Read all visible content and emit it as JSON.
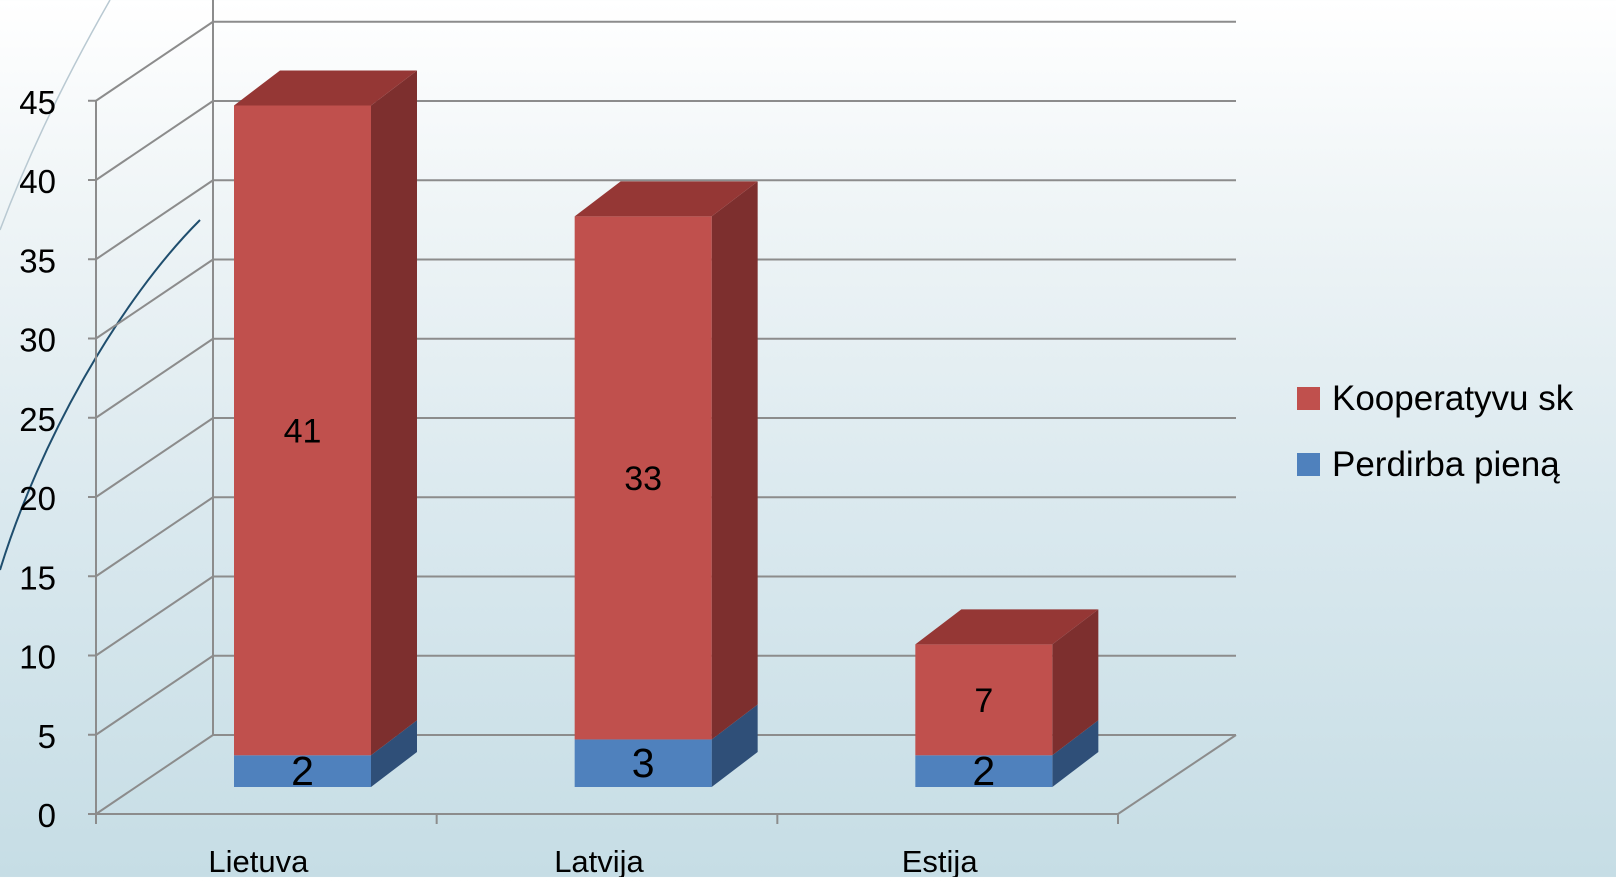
{
  "chart_data": {
    "type": "bar",
    "stacked": true,
    "three_d": true,
    "categories": [
      "Lietuva",
      "Latvija",
      "Estija"
    ],
    "series": [
      {
        "name": "Perdirba pieną",
        "values": [
          2,
          3,
          2
        ],
        "color": "#4f81bd",
        "side_color": "#2f4f78",
        "top_color": "#3d6aa0"
      },
      {
        "name": "Kooperatyvu sk",
        "values": [
          41,
          33,
          7
        ],
        "color": "#c0504d",
        "side_color": "#7d2f2e",
        "top_color": "#953735"
      }
    ],
    "ylim": [
      0,
      50
    ],
    "y_ticks": [
      "0",
      "5",
      "10",
      "15",
      "20",
      "25",
      "30",
      "35",
      "40",
      "45"
    ],
    "grid": true,
    "legend": {
      "position": "right",
      "order": [
        "Kooperatyvu sk",
        "Perdirba pieną"
      ]
    },
    "title": "",
    "xlabel": "",
    "ylabel": ""
  }
}
